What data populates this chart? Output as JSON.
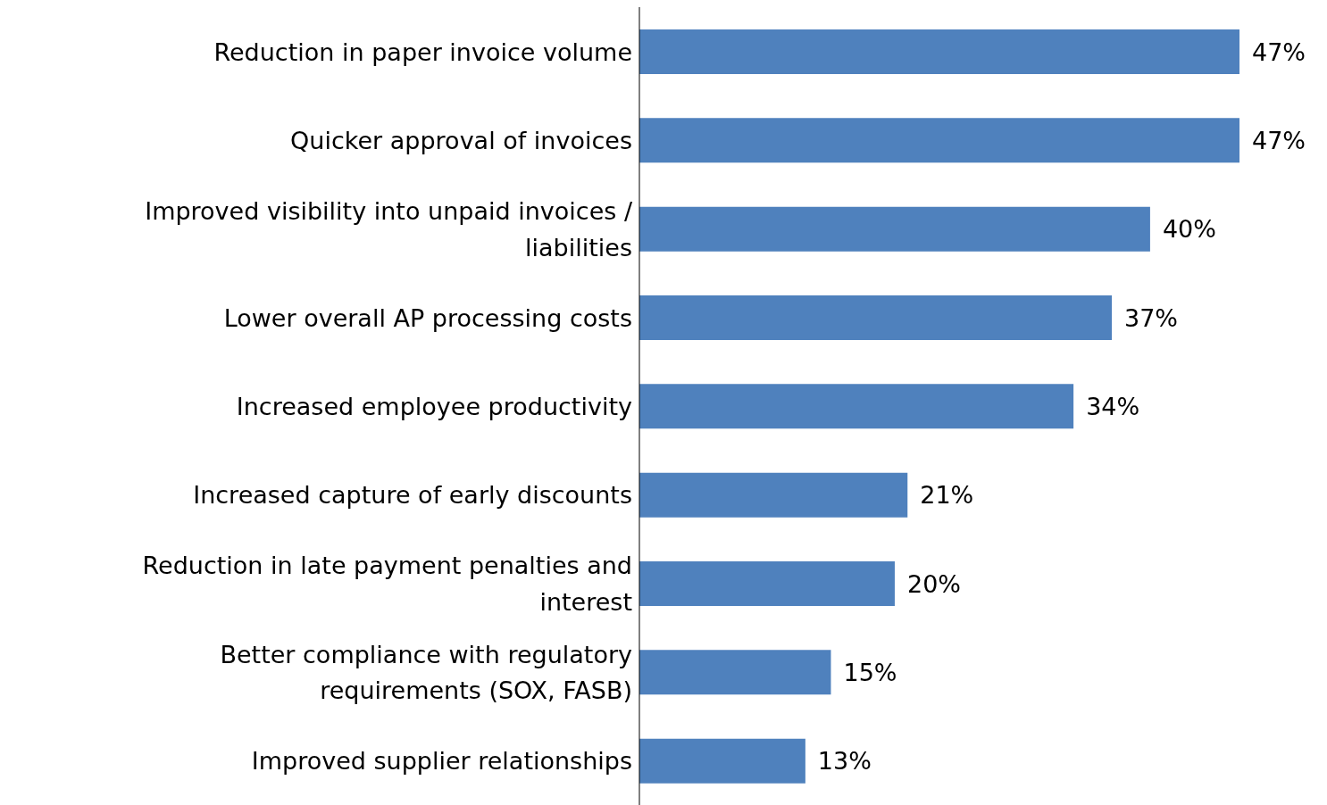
{
  "chart_data": {
    "type": "bar",
    "orientation": "horizontal",
    "categories": [
      "Reduction in paper invoice volume",
      "Quicker approval of invoices",
      "Improved visibility into unpaid invoices / liabilities",
      "Lower overall AP processing costs",
      "Increased employee productivity",
      "Increased capture of early discounts",
      "Reduction in late payment penalties and interest",
      "Better compliance with regulatory requirements (SOX, FASB)",
      "Improved supplier relationships"
    ],
    "values": [
      47,
      47,
      40,
      37,
      34,
      21,
      20,
      15,
      13
    ],
    "value_labels": [
      "47%",
      "47%",
      "40%",
      "37%",
      "34%",
      "21%",
      "20%",
      "15%",
      "13%"
    ],
    "color": "#4f81bd",
    "tick_labels": "y"
  }
}
